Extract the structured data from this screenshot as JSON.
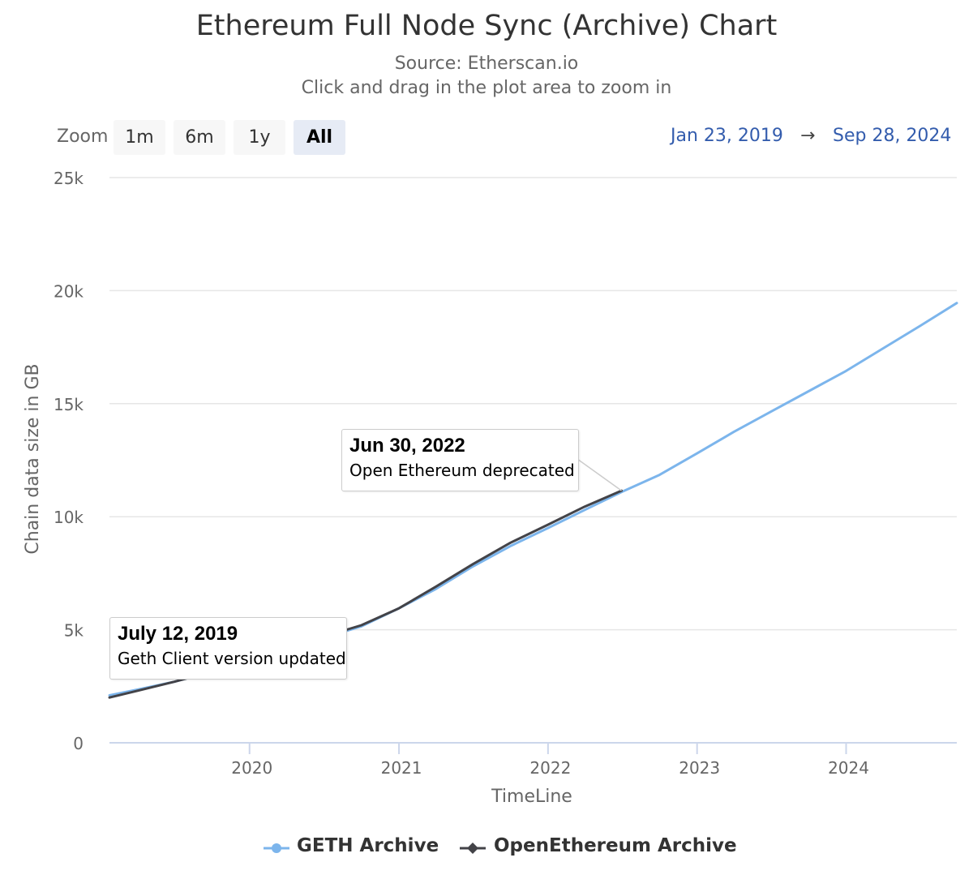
{
  "title": "Ethereum Full Node Sync (Archive) Chart",
  "subtitle": "Source: Etherscan.io",
  "instruction": "Click and drag in the plot area to zoom in",
  "zoom": {
    "label": "Zoom",
    "buttons": [
      "1m",
      "6m",
      "1y",
      "All"
    ],
    "active": "All"
  },
  "range": {
    "from": "Jan 23, 2019",
    "arrow": "→",
    "to": "Sep 28, 2024"
  },
  "annotations": [
    {
      "date": "July 12, 2019",
      "text": "Geth Client version updated"
    },
    {
      "date": "Jun 30, 2022",
      "text": "Open Ethereum deprecated"
    }
  ],
  "legend": [
    "GETH Archive",
    "OpenEthereum Archive"
  ],
  "colors": {
    "geth": "#7cb5ec",
    "openethereum": "#434348",
    "grid": "#e6e6e6",
    "axis": "#ccd6eb"
  },
  "chart_data": {
    "type": "line",
    "xlabel": "TimeLine",
    "ylabel": "Chain data size in GB",
    "xlim": [
      "2019-01-23",
      "2024-09-28"
    ],
    "ylim": [
      0,
      25000
    ],
    "y_ticks": [
      0,
      5000,
      10000,
      15000,
      20000,
      25000
    ],
    "y_tick_labels": [
      "0",
      "5k",
      "10k",
      "15k",
      "20k",
      "25k"
    ],
    "x_ticks": [
      "2020-01-01",
      "2021-01-01",
      "2022-01-01",
      "2023-01-01",
      "2024-01-01"
    ],
    "x_tick_labels": [
      "2020",
      "2021",
      "2022",
      "2023",
      "2024"
    ],
    "grid": true,
    "legend_position": "bottom-center",
    "series": [
      {
        "name": "GETH Archive",
        "points": [
          [
            "2019-01-23",
            2100
          ],
          [
            "2019-04-01",
            2350
          ],
          [
            "2019-07-01",
            2700
          ],
          [
            "2019-10-01",
            3150
          ],
          [
            "2020-01-01",
            3650
          ],
          [
            "2020-04-01",
            4150
          ],
          [
            "2020-07-01",
            4650
          ],
          [
            "2020-10-01",
            5150
          ],
          [
            "2021-01-01",
            5950
          ],
          [
            "2021-04-01",
            6800
          ],
          [
            "2021-07-01",
            7800
          ],
          [
            "2021-10-01",
            8700
          ],
          [
            "2022-01-01",
            9500
          ],
          [
            "2022-04-01",
            10300
          ],
          [
            "2022-07-01",
            11100
          ],
          [
            "2022-10-01",
            11850
          ],
          [
            "2023-01-01",
            12800
          ],
          [
            "2023-04-01",
            13750
          ],
          [
            "2023-07-01",
            14650
          ],
          [
            "2023-10-01",
            15550
          ],
          [
            "2024-01-01",
            16450
          ],
          [
            "2024-04-01",
            17450
          ],
          [
            "2024-07-01",
            18450
          ],
          [
            "2024-09-28",
            19450
          ]
        ]
      },
      {
        "name": "OpenEthereum Archive",
        "points": [
          [
            "2019-01-23",
            2000
          ],
          [
            "2019-04-01",
            2300
          ],
          [
            "2019-07-01",
            2700
          ],
          [
            "2019-10-01",
            3150
          ],
          [
            "2020-01-01",
            3650
          ],
          [
            "2020-04-01",
            4150
          ],
          [
            "2020-07-01",
            4700
          ],
          [
            "2020-10-01",
            5200
          ],
          [
            "2021-01-01",
            5950
          ],
          [
            "2021-04-01",
            6900
          ],
          [
            "2021-07-01",
            7900
          ],
          [
            "2021-10-01",
            8850
          ],
          [
            "2022-01-01",
            9650
          ],
          [
            "2022-04-01",
            10450
          ],
          [
            "2022-06-30",
            11150
          ]
        ]
      }
    ]
  }
}
